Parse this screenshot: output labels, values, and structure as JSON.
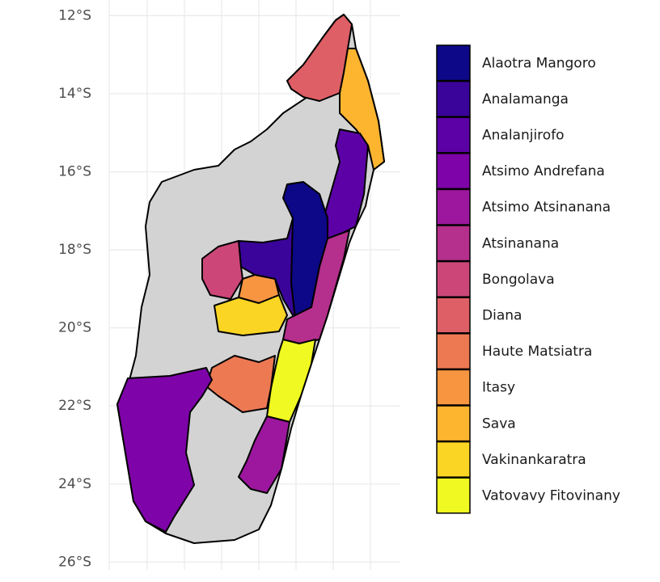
{
  "map": {
    "ylim": [
      -26.2,
      -11.6
    ],
    "yticks": [
      {
        "value": -12,
        "label": "12°S"
      },
      {
        "value": -14,
        "label": "14°S"
      },
      {
        "value": -16,
        "label": "16°S"
      },
      {
        "value": -18,
        "label": "18°S"
      },
      {
        "value": -20,
        "label": "20°S"
      },
      {
        "value": -22,
        "label": "22°S"
      },
      {
        "value": -24,
        "label": "24°S"
      },
      {
        "value": -26,
        "label": "26°S"
      }
    ],
    "legend": [
      {
        "name": "Alaotra Mangoro",
        "color": "#0d0887"
      },
      {
        "name": "Analamanga",
        "color": "#3a049a"
      },
      {
        "name": "Analanjirofo",
        "color": "#5c01a6"
      },
      {
        "name": "Atsimo Andrefana",
        "color": "#7e03a8"
      },
      {
        "name": "Atsimo Atsinanana",
        "color": "#9c179e"
      },
      {
        "name": "Atsinanana",
        "color": "#b52f8c"
      },
      {
        "name": "Bongolava",
        "color": "#cc4778"
      },
      {
        "name": "Diana",
        "color": "#de5f65"
      },
      {
        "name": "Haute Matsiatra",
        "color": "#ed7953"
      },
      {
        "name": "Itasy",
        "color": "#f89540"
      },
      {
        "name": "Sava",
        "color": "#fdb42f"
      },
      {
        "name": "Vakinankaratra",
        "color": "#fbd524"
      },
      {
        "name": "Vatovavy Fitovinany",
        "color": "#f0f921"
      }
    ]
  }
}
